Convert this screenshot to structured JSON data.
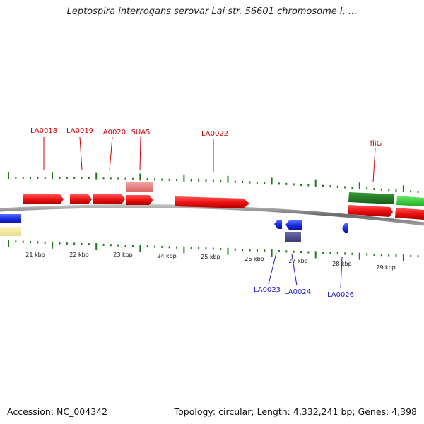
{
  "title": "Leptospira interrogans serovar Lai str. 56601 chromosome I, ...",
  "footer": {
    "accession": "Accession: NC_004342",
    "summary": "Topology: circular; Length: 4,332,241 bp; Genes: 4,398"
  },
  "colors": {
    "forward_gene": "#ee1111",
    "reverse_gene": "#1a2ee6",
    "tick": "#1d7a1d",
    "forward_label": "#cc0000",
    "reverse_label": "#1a1acc",
    "backbone": "#8a8a8a"
  },
  "scale": {
    "ticks": [
      {
        "label": "21 kbp"
      },
      {
        "label": "22 kbp"
      },
      {
        "label": "23 kbp"
      },
      {
        "label": "24 kbp"
      },
      {
        "label": "25 kbp"
      },
      {
        "label": "26 kbp"
      },
      {
        "label": "27 kbp"
      },
      {
        "label": "28 kbp"
      },
      {
        "label": "29 kbp"
      }
    ]
  },
  "labels": {
    "forward": [
      "LA0018",
      "LA0019",
      "LA0020",
      "SUA5",
      "LA0022",
      "fliG"
    ],
    "reverse": [
      "LA0023",
      "LA0024",
      "LA0026"
    ]
  }
}
